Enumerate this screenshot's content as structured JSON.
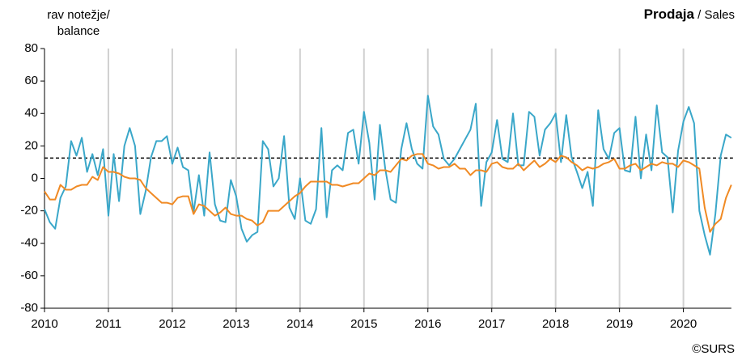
{
  "chart_data": {
    "type": "line",
    "title_bold": "Prodaja",
    "title_rest": "/ Sales",
    "ylabel": [
      "rav notežje/",
      "balance"
    ],
    "source": "©SURS",
    "categories": [
      "2010",
      null,
      null,
      null,
      null,
      null,
      null,
      null,
      null,
      null,
      null,
      null,
      "2011",
      null,
      null,
      null,
      null,
      null,
      null,
      null,
      null,
      null,
      null,
      null,
      "2012",
      null,
      null,
      null,
      null,
      null,
      null,
      null,
      null,
      null,
      null,
      null,
      "2013",
      null,
      null,
      null,
      null,
      null,
      null,
      null,
      null,
      null,
      null,
      null,
      "2014",
      null,
      null,
      null,
      null,
      null,
      null,
      null,
      null,
      null,
      null,
      null,
      "2015",
      null,
      null,
      null,
      null,
      null,
      null,
      null,
      null,
      null,
      null,
      null,
      "2016",
      null,
      null,
      null,
      null,
      null,
      null,
      null,
      null,
      null,
      null,
      null,
      "2017",
      null,
      null,
      null,
      null,
      null,
      null,
      null,
      null,
      null,
      null,
      null,
      "2018",
      null,
      null,
      null,
      null,
      null,
      null,
      null,
      null,
      null,
      null,
      null,
      "2019",
      null,
      null,
      null,
      null,
      null,
      null,
      null,
      null,
      null,
      null,
      null,
      "2020",
      null,
      null,
      null,
      null,
      null,
      null,
      null,
      null,
      null
    ],
    "series": [
      {
        "color": "#3aa7c9",
        "values": [
          -19,
          -27,
          -31,
          -12,
          -5,
          23,
          14,
          25,
          4,
          15,
          2,
          18,
          -23,
          15,
          -14,
          20,
          31,
          20,
          -22,
          -8,
          13,
          23,
          23,
          26,
          9,
          19,
          7,
          5,
          -21,
          2,
          -23,
          16,
          -16,
          -26,
          -27,
          -1,
          -11,
          -31,
          -39,
          -35,
          -33,
          23,
          18,
          -5,
          0,
          26,
          -18,
          -25,
          0,
          -26,
          -28,
          -19,
          31,
          -24,
          5,
          8,
          5,
          28,
          30,
          9,
          41,
          22,
          -13,
          33,
          6,
          -13,
          -15,
          18,
          34,
          18,
          9,
          6,
          51,
          32,
          27,
          12,
          8,
          12,
          18,
          24,
          30,
          46,
          -17,
          10,
          16,
          36,
          12,
          10,
          40,
          8,
          8,
          41,
          38,
          14,
          30,
          34,
          40,
          10,
          39,
          13,
          4,
          -6,
          4,
          -17,
          42,
          18,
          12,
          28,
          31,
          5,
          4,
          38,
          0,
          27,
          5,
          45,
          16,
          13,
          -21,
          17,
          35,
          44,
          34,
          -20,
          -35,
          -47,
          -22,
          14,
          27,
          25
        ]
      },
      {
        "color": "#f08a24",
        "values": [
          -8,
          -13,
          -13,
          -4,
          -7,
          -7,
          -5,
          -4,
          -4,
          1,
          -1,
          7,
          4,
          4,
          3,
          1,
          0,
          0,
          -1,
          -6,
          -9,
          -12,
          -15,
          -15,
          -16,
          -12,
          -11,
          -11,
          -22,
          -16,
          -17,
          -20,
          -23,
          -21,
          -18,
          -22,
          -23,
          -23,
          -25,
          -26,
          -29,
          -27,
          -20,
          -20,
          -20,
          -17,
          -14,
          -11,
          -9,
          -5,
          -2,
          -2,
          -2,
          -2,
          -4,
          -4,
          -5,
          -4,
          -3,
          -3,
          0,
          3,
          2,
          5,
          5,
          4,
          8,
          12,
          11,
          14,
          15,
          15,
          9,
          8,
          6,
          7,
          7,
          9,
          6,
          6,
          2,
          5,
          5,
          4,
          9,
          10,
          7,
          6,
          6,
          9,
          5,
          8,
          11,
          7,
          9,
          12,
          10,
          14,
          13,
          10,
          8,
          5,
          7,
          6,
          7,
          9,
          10,
          12,
          6,
          6,
          8,
          9,
          5,
          7,
          9,
          8,
          10,
          9,
          9,
          7,
          11,
          10,
          8,
          6,
          -18,
          -33,
          -28,
          -25,
          -12,
          -4
        ]
      }
    ],
    "reference_line": 12.5,
    "ylim": [
      -80,
      80
    ],
    "yticks": [
      -80,
      -60,
      -40,
      -20,
      0,
      20,
      40,
      60,
      80
    ],
    "vertical_grid": true
  }
}
